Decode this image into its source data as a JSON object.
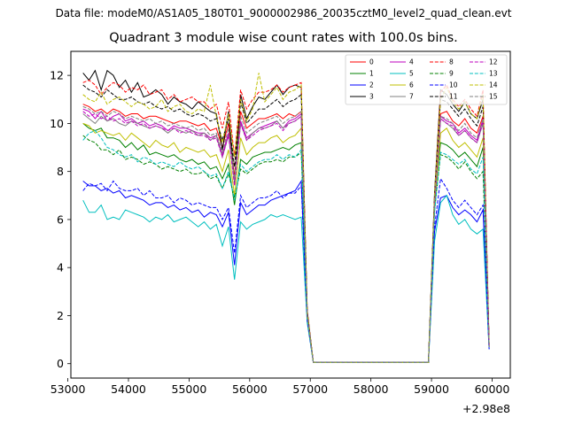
{
  "suptitle": "Data file: modeM0/AS1A05_180T01_9000002986_20035cztM0_level2_quad_clean.evt",
  "title": "Quadrant 3 module wise count rates with 100.0s bins.",
  "chart_data": {
    "type": "line",
    "xlim": [
      53050,
      60300
    ],
    "ylim": [
      -0.6,
      13.0
    ],
    "x_offset_label": "+2.98e8",
    "xticks": [
      53000,
      54000,
      55000,
      56000,
      57000,
      58000,
      59000,
      60000
    ],
    "yticks": [
      0,
      2,
      4,
      6,
      8,
      10,
      12
    ],
    "grid": false,
    "legend_location": "upper right",
    "legend_columns": 4,
    "x": [
      53250,
      53350,
      53450,
      53550,
      53650,
      53750,
      53850,
      53950,
      54050,
      54150,
      54250,
      54350,
      54450,
      54550,
      54650,
      54750,
      54850,
      54950,
      55050,
      55150,
      55250,
      55350,
      55450,
      55550,
      55650,
      55750,
      55850,
      55950,
      56050,
      56150,
      56250,
      56350,
      56450,
      56550,
      56650,
      56750,
      56850,
      56950,
      57050,
      58950,
      59050,
      59150,
      59250,
      59350,
      59450,
      59550,
      59650,
      59750,
      59850,
      59950
    ],
    "series": [
      {
        "name": "0",
        "color": "#ff0000",
        "dash": "solid",
        "values": [
          10.8,
          10.7,
          10.5,
          10.6,
          10.4,
          10.6,
          10.5,
          10.3,
          10.4,
          10.4,
          10.2,
          10.3,
          10.3,
          10.2,
          10.1,
          10.0,
          10.1,
          10.1,
          10.0,
          9.9,
          10.0,
          9.7,
          9.8,
          9.0,
          10.0,
          7.8,
          10.5,
          9.8,
          10.0,
          10.2,
          10.2,
          10.3,
          10.4,
          10.2,
          10.4,
          10.3,
          10.5,
          2.0,
          0.05,
          0.05,
          6.8,
          10.4,
          10.5,
          10.1,
          9.9,
          10.2,
          9.8,
          9.6,
          10.3,
          0.7
        ]
      },
      {
        "name": "1",
        "color": "#008000",
        "dash": "solid",
        "values": [
          10.0,
          9.8,
          9.7,
          9.8,
          9.4,
          9.4,
          9.3,
          9.0,
          9.2,
          8.9,
          9.1,
          8.7,
          8.8,
          8.7,
          8.6,
          8.7,
          8.5,
          8.4,
          8.5,
          8.3,
          8.4,
          8.1,
          8.2,
          7.7,
          8.3,
          6.6,
          8.5,
          8.3,
          8.6,
          8.7,
          8.8,
          8.8,
          8.9,
          9.0,
          8.9,
          9.1,
          9.2,
          2.0,
          0.05,
          0.05,
          6.8,
          9.2,
          9.1,
          8.9,
          8.6,
          8.8,
          8.5,
          8.2,
          9.0,
          0.7
        ]
      },
      {
        "name": "2",
        "color": "#0000ff",
        "dash": "solid",
        "values": [
          7.6,
          7.4,
          7.4,
          7.2,
          7.3,
          7.1,
          7.2,
          6.9,
          7.0,
          6.9,
          6.8,
          6.6,
          6.7,
          6.7,
          6.5,
          6.6,
          6.4,
          6.5,
          6.3,
          6.4,
          6.1,
          6.3,
          6.2,
          5.7,
          6.3,
          4.1,
          6.7,
          6.2,
          6.4,
          6.6,
          6.6,
          6.8,
          6.9,
          7.0,
          7.1,
          7.2,
          7.6,
          1.8,
          0.05,
          0.05,
          5.5,
          6.9,
          7.0,
          6.5,
          6.2,
          6.4,
          6.2,
          5.9,
          6.4,
          0.6
        ]
      },
      {
        "name": "3",
        "color": "#000000",
        "dash": "solid",
        "values": [
          12.1,
          11.8,
          12.2,
          11.4,
          12.2,
          12.0,
          11.5,
          11.8,
          11.3,
          11.7,
          11.1,
          11.2,
          11.4,
          11.2,
          10.8,
          11.1,
          10.9,
          10.8,
          10.6,
          10.9,
          10.7,
          10.5,
          10.4,
          8.9,
          10.5,
          7.5,
          11.2,
          10.2,
          10.7,
          11.1,
          11.0,
          11.3,
          11.6,
          11.2,
          11.5,
          11.6,
          11.5,
          2.2,
          0.05,
          0.05,
          7.1,
          11.4,
          11.2,
          10.8,
          10.5,
          10.9,
          10.4,
          10.2,
          11.0,
          0.8
        ]
      },
      {
        "name": "4",
        "color": "#bf00bf",
        "dash": "solid",
        "values": [
          10.6,
          10.5,
          10.2,
          10.5,
          10.1,
          10.3,
          10.4,
          10.1,
          10.2,
          10.0,
          10.1,
          9.9,
          10.0,
          9.9,
          9.7,
          9.9,
          9.8,
          9.8,
          9.7,
          9.6,
          9.6,
          9.4,
          9.5,
          8.7,
          9.6,
          7.6,
          10.1,
          9.4,
          9.6,
          9.8,
          9.9,
          10.0,
          10.1,
          9.8,
          10.1,
          10.2,
          10.4,
          2.0,
          0.05,
          0.05,
          6.6,
          10.3,
          10.1,
          10.0,
          9.6,
          9.8,
          9.5,
          9.3,
          10.2,
          0.7
        ]
      },
      {
        "name": "5",
        "color": "#00bfbf",
        "dash": "solid",
        "values": [
          6.8,
          6.3,
          6.3,
          6.6,
          6.0,
          6.1,
          6.0,
          6.4,
          6.3,
          6.2,
          6.1,
          5.9,
          6.1,
          6.0,
          6.2,
          5.9,
          6.0,
          6.1,
          5.9,
          5.7,
          5.9,
          5.6,
          5.8,
          4.9,
          5.7,
          3.5,
          5.9,
          5.6,
          5.8,
          5.9,
          6.0,
          6.2,
          6.1,
          6.2,
          6.1,
          6.0,
          6.1,
          1.7,
          0.05,
          0.05,
          5.1,
          6.7,
          7.0,
          6.2,
          5.8,
          6.0,
          5.6,
          5.4,
          5.6,
          0.6
        ]
      },
      {
        "name": "6",
        "color": "#bfbf00",
        "dash": "solid",
        "values": [
          10.0,
          9.9,
          9.6,
          9.7,
          9.6,
          9.5,
          9.6,
          9.3,
          9.6,
          9.4,
          9.2,
          9.0,
          9.3,
          9.1,
          9.0,
          9.2,
          8.8,
          9.0,
          8.9,
          8.8,
          8.9,
          8.6,
          8.7,
          8.0,
          8.9,
          7.0,
          9.4,
          8.7,
          9.0,
          9.2,
          9.2,
          9.4,
          9.5,
          9.2,
          9.4,
          9.5,
          9.8,
          1.9,
          0.05,
          0.05,
          6.4,
          9.6,
          9.8,
          9.3,
          9.0,
          9.2,
          8.9,
          8.6,
          9.4,
          0.7
        ]
      },
      {
        "name": "7",
        "color": "#808080",
        "dash": "solid",
        "values": [
          10.4,
          10.2,
          10.0,
          10.3,
          10.1,
          10.2,
          10.0,
          9.9,
          10.1,
          10.0,
          9.9,
          9.8,
          9.9,
          9.8,
          9.6,
          9.8,
          9.7,
          9.6,
          9.7,
          9.5,
          9.6,
          9.3,
          9.5,
          8.6,
          9.5,
          7.6,
          10.0,
          9.3,
          9.6,
          9.8,
          9.8,
          9.9,
          10.1,
          9.8,
          10.0,
          10.1,
          10.3,
          2.0,
          0.05,
          0.05,
          6.6,
          10.2,
          10.0,
          9.8,
          9.5,
          9.7,
          9.4,
          9.2,
          10.0,
          0.7
        ]
      },
      {
        "name": "8",
        "color": "#ff0000",
        "dash": "dashed",
        "values": [
          11.7,
          11.8,
          11.6,
          11.2,
          11.5,
          11.7,
          11.6,
          11.3,
          11.5,
          11.4,
          11.6,
          11.2,
          11.3,
          11.4,
          11.0,
          11.2,
          10.9,
          11.0,
          11.1,
          10.9,
          10.9,
          10.6,
          10.8,
          9.8,
          10.9,
          8.6,
          11.4,
          10.6,
          11.0,
          11.3,
          11.3,
          11.4,
          11.6,
          11.3,
          11.5,
          11.6,
          11.7,
          2.2,
          0.05,
          0.05,
          7.0,
          11.3,
          11.6,
          11.0,
          10.7,
          11.0,
          10.6,
          10.3,
          11.4,
          0.8
        ]
      },
      {
        "name": "9",
        "color": "#008000",
        "dash": "dashed",
        "values": [
          9.5,
          9.3,
          9.2,
          8.9,
          8.9,
          8.7,
          8.9,
          8.5,
          8.6,
          8.5,
          8.3,
          8.4,
          8.3,
          8.1,
          8.2,
          8.1,
          8.0,
          8.1,
          7.9,
          7.9,
          8.0,
          7.7,
          7.8,
          7.3,
          7.9,
          6.9,
          8.1,
          7.9,
          8.1,
          8.3,
          8.4,
          8.4,
          8.5,
          8.4,
          8.6,
          8.6,
          8.8,
          1.9,
          0.05,
          0.05,
          6.4,
          8.7,
          8.6,
          8.4,
          8.1,
          8.4,
          8.0,
          7.7,
          8.0,
          0.7
        ]
      },
      {
        "name": "10",
        "color": "#0000ff",
        "dash": "dashed",
        "values": [
          7.2,
          7.5,
          7.4,
          7.5,
          7.2,
          7.6,
          7.3,
          7.2,
          7.2,
          7.3,
          7.0,
          7.2,
          6.9,
          6.9,
          7.0,
          6.7,
          6.9,
          6.8,
          6.6,
          6.7,
          6.6,
          6.5,
          6.5,
          6.0,
          6.5,
          4.6,
          7.0,
          6.5,
          6.7,
          6.9,
          6.9,
          7.0,
          7.2,
          6.9,
          7.1,
          7.1,
          7.4,
          1.8,
          0.05,
          0.05,
          5.7,
          7.7,
          7.3,
          6.8,
          6.5,
          6.8,
          6.5,
          6.2,
          6.6,
          0.6
        ]
      },
      {
        "name": "11",
        "color": "#000000",
        "dash": "dashed",
        "values": [
          11.6,
          11.4,
          11.3,
          11.1,
          11.4,
          11.2,
          11.0,
          11.0,
          11.1,
          10.9,
          10.8,
          10.9,
          10.7,
          10.6,
          10.7,
          10.5,
          10.6,
          10.4,
          10.3,
          10.4,
          10.3,
          10.1,
          10.2,
          9.3,
          10.2,
          8.2,
          10.9,
          10.0,
          10.3,
          10.6,
          10.6,
          10.8,
          11.0,
          10.7,
          10.9,
          11.0,
          11.2,
          2.1,
          0.05,
          0.05,
          6.9,
          11.0,
          10.9,
          10.6,
          10.3,
          10.6,
          10.2,
          9.9,
          10.7,
          0.8
        ]
      },
      {
        "name": "12",
        "color": "#bf00bf",
        "dash": "dashed",
        "values": [
          10.5,
          10.3,
          10.4,
          10.2,
          10.3,
          10.1,
          10.2,
          10.0,
          10.1,
          9.9,
          10.0,
          9.8,
          9.9,
          9.8,
          9.7,
          9.8,
          9.6,
          9.7,
          9.6,
          9.5,
          9.5,
          9.3,
          9.4,
          8.6,
          9.5,
          7.4,
          10.0,
          9.3,
          9.5,
          9.7,
          9.8,
          9.9,
          10.0,
          9.7,
          10.0,
          10.1,
          10.3,
          2.0,
          0.05,
          0.05,
          6.6,
          10.2,
          10.0,
          9.9,
          9.5,
          9.7,
          9.4,
          9.2,
          10.1,
          0.7
        ]
      },
      {
        "name": "13",
        "color": "#00bfbf",
        "dash": "dashed",
        "values": [
          9.3,
          9.6,
          9.7,
          9.4,
          9.0,
          8.9,
          8.7,
          8.6,
          8.7,
          8.4,
          8.6,
          8.5,
          8.3,
          8.4,
          8.3,
          8.2,
          8.4,
          8.2,
          8.1,
          8.2,
          8.0,
          7.8,
          7.9,
          7.3,
          8.0,
          6.8,
          8.3,
          8.0,
          8.2,
          8.4,
          8.5,
          8.5,
          8.7,
          8.5,
          8.7,
          8.6,
          8.9,
          1.9,
          0.05,
          0.05,
          6.3,
          8.8,
          8.7,
          8.5,
          8.3,
          8.5,
          8.1,
          7.9,
          8.6,
          0.7
        ]
      },
      {
        "name": "14",
        "color": "#bfbf00",
        "dash": "dashed",
        "values": [
          11.2,
          11.0,
          10.9,
          11.3,
          10.8,
          11.0,
          11.1,
          10.9,
          10.7,
          10.9,
          10.8,
          10.6,
          10.7,
          11.0,
          10.5,
          10.7,
          10.8,
          10.5,
          10.4,
          10.6,
          10.5,
          11.6,
          10.3,
          9.2,
          10.4,
          8.6,
          11.0,
          10.1,
          10.6,
          12.1,
          10.9,
          11.2,
          11.5,
          11.0,
          11.3,
          11.4,
          11.6,
          2.1,
          0.05,
          0.05,
          7.0,
          11.0,
          11.5,
          10.9,
          10.6,
          10.9,
          10.4,
          10.2,
          11.2,
          0.8
        ]
      },
      {
        "name": "15",
        "color": "#808080",
        "dash": "dashed",
        "values": [
          10.7,
          10.6,
          10.4,
          10.5,
          10.3,
          10.5,
          10.4,
          10.2,
          10.3,
          10.2,
          10.1,
          10.2,
          10.0,
          10.1,
          9.9,
          10.0,
          9.9,
          9.8,
          9.9,
          9.7,
          9.8,
          9.5,
          9.6,
          8.8,
          9.8,
          7.7,
          10.3,
          9.6,
          9.8,
          10.0,
          10.1,
          10.2,
          10.3,
          10.0,
          10.2,
          10.3,
          10.5,
          2.0,
          0.05,
          0.05,
          6.7,
          10.3,
          10.2,
          10.0,
          9.7,
          10.0,
          9.6,
          9.4,
          10.2,
          0.7
        ]
      }
    ]
  }
}
